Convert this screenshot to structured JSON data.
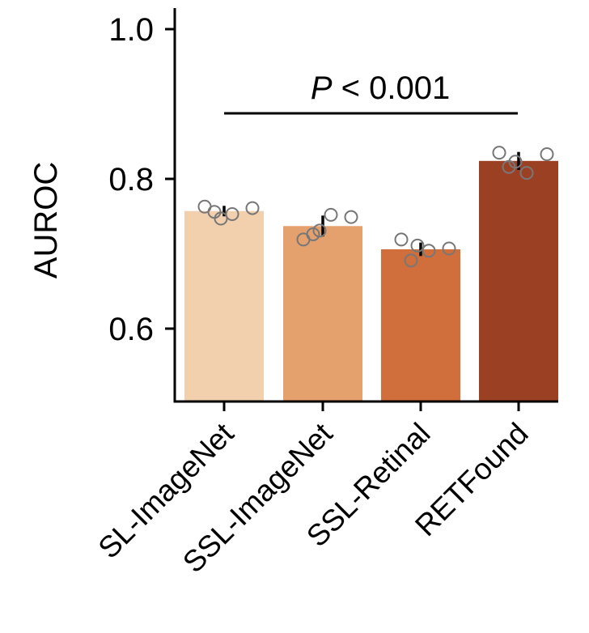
{
  "chart_data": {
    "type": "bar",
    "ylabel": "AUROC",
    "ylim": [
      0.5,
      1.03
    ],
    "yticks": [
      0.6,
      0.8,
      1.0
    ],
    "ytick_labels": [
      "0.6",
      "0.8",
      "1.0"
    ],
    "categories": [
      "SL-ImageNet",
      "SSL-ImageNet",
      "SSL-Retinal",
      "RETFound"
    ],
    "values": [
      0.757,
      0.737,
      0.706,
      0.824
    ],
    "errors": [
      0.007,
      0.014,
      0.009,
      0.012
    ],
    "colors": [
      "#f2cfad",
      "#e4a06d",
      "#d06e3c",
      "#9c4024"
    ],
    "points": [
      [
        0.763,
        0.756,
        0.747,
        0.753,
        0.761
      ],
      [
        0.719,
        0.726,
        0.731,
        0.752,
        0.749
      ],
      [
        0.719,
        0.691,
        0.711,
        0.704,
        0.707
      ],
      [
        0.835,
        0.816,
        0.823,
        0.808,
        0.833
      ]
    ],
    "annotation": {
      "prefix": "P",
      "text": " < 0.001"
    }
  }
}
